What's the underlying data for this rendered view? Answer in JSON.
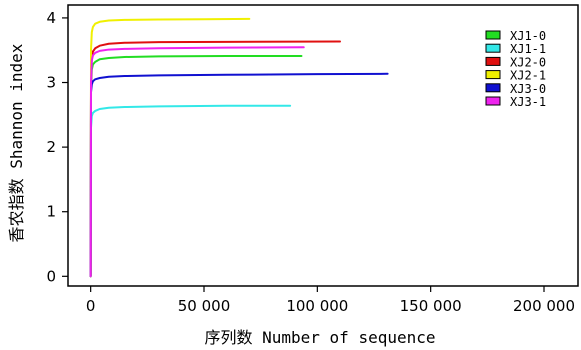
{
  "chart_data": {
    "type": "line",
    "title": "",
    "xlabel": "序列数 Number of sequence",
    "ylabel": "香农指数 Shannon index",
    "xlim": [
      -10000,
      215000
    ],
    "ylim": [
      -0.15,
      4.2
    ],
    "x_ticks": [
      0,
      50000,
      100000,
      150000,
      200000
    ],
    "x_tick_labels": [
      "0",
      "50 000",
      "100 000",
      "150 000",
      "200 000"
    ],
    "y_ticks": [
      0,
      1,
      2,
      3,
      4
    ],
    "y_tick_labels": [
      "0",
      "1",
      "2",
      "3",
      "4"
    ],
    "grid": false,
    "legend_position": "top-right",
    "series": [
      {
        "name": "XJ1-0",
        "color": "#22dd22",
        "x": [
          0,
          150,
          500,
          1000,
          2000,
          4000,
          8000,
          15000,
          30000,
          60000,
          93000
        ],
        "y": [
          0,
          2.9,
          3.2,
          3.28,
          3.32,
          3.36,
          3.38,
          3.395,
          3.405,
          3.41,
          3.41
        ]
      },
      {
        "name": "XJ1-1",
        "color": "#33e8e8",
        "x": [
          0,
          150,
          500,
          1000,
          2000,
          4000,
          8000,
          15000,
          30000,
          60000,
          88000
        ],
        "y": [
          0,
          2.3,
          2.48,
          2.53,
          2.56,
          2.59,
          2.61,
          2.62,
          2.63,
          2.64,
          2.64
        ]
      },
      {
        "name": "XJ2-0",
        "color": "#e01010",
        "x": [
          0,
          150,
          500,
          1000,
          2000,
          4000,
          8000,
          15000,
          30000,
          60000,
          110000
        ],
        "y": [
          0,
          3.0,
          3.38,
          3.48,
          3.53,
          3.57,
          3.6,
          3.615,
          3.625,
          3.63,
          3.635
        ]
      },
      {
        "name": "XJ2-1",
        "color": "#f0f000",
        "x": [
          0,
          150,
          500,
          1000,
          2000,
          4000,
          8000,
          15000,
          30000,
          50000,
          70000
        ],
        "y": [
          0,
          3.5,
          3.78,
          3.86,
          3.91,
          3.94,
          3.96,
          3.97,
          3.975,
          3.98,
          3.985
        ]
      },
      {
        "name": "XJ3-0",
        "color": "#1010d0",
        "x": [
          0,
          150,
          500,
          1000,
          2000,
          4000,
          8000,
          15000,
          30000,
          60000,
          100000,
          131000
        ],
        "y": [
          0,
          2.85,
          2.97,
          3.02,
          3.05,
          3.07,
          3.09,
          3.1,
          3.11,
          3.12,
          3.13,
          3.135
        ]
      },
      {
        "name": "XJ3-1",
        "color": "#ee22ee",
        "x": [
          0,
          150,
          500,
          1000,
          2000,
          4000,
          8000,
          15000,
          30000,
          60000,
          94000
        ],
        "y": [
          0,
          3.0,
          3.34,
          3.42,
          3.46,
          3.49,
          3.51,
          3.52,
          3.53,
          3.54,
          3.545
        ]
      }
    ]
  }
}
